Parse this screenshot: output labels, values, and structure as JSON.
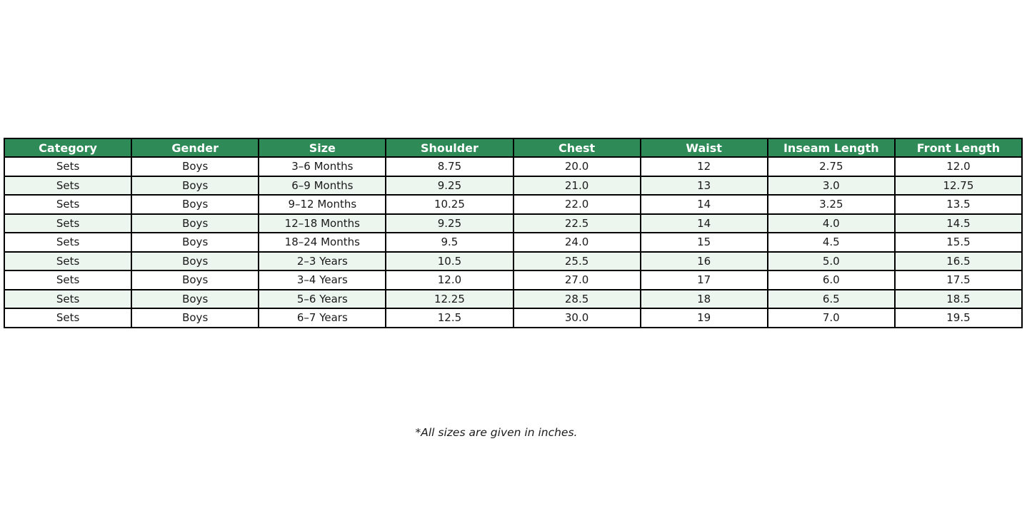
{
  "chart_data": {
    "type": "table",
    "title": "",
    "columns": [
      "Category",
      "Gender",
      "Size",
      "Shoulder",
      "Chest",
      "Waist",
      "Inseam Length",
      "Front Length"
    ],
    "rows": [
      [
        "Sets",
        "Boys",
        "3–6 Months",
        "8.75",
        "20.0",
        "12",
        "2.75",
        "12.0"
      ],
      [
        "Sets",
        "Boys",
        "6–9 Months",
        "9.25",
        "21.0",
        "13",
        "3.0",
        "12.75"
      ],
      [
        "Sets",
        "Boys",
        "9–12 Months",
        "10.25",
        "22.0",
        "14",
        "3.25",
        "13.5"
      ],
      [
        "Sets",
        "Boys",
        "12–18 Months",
        "9.25",
        "22.5",
        "14",
        "4.0",
        "14.5"
      ],
      [
        "Sets",
        "Boys",
        "18–24 Months",
        "9.5",
        "24.0",
        "15",
        "4.5",
        "15.5"
      ],
      [
        "Sets",
        "Boys",
        "2–3 Years",
        "10.5",
        "25.5",
        "16",
        "5.0",
        "16.5"
      ],
      [
        "Sets",
        "Boys",
        "3–4 Years",
        "12.0",
        "27.0",
        "17",
        "6.0",
        "17.5"
      ],
      [
        "Sets",
        "Boys",
        "5–6 Years",
        "12.25",
        "28.5",
        "18",
        "6.5",
        "18.5"
      ],
      [
        "Sets",
        "Boys",
        "6–7 Years",
        "12.5",
        "30.0",
        "19",
        "7.0",
        "19.5"
      ]
    ],
    "footnote": "*All sizes are given in inches.",
    "layout_hints": {
      "header_position": "top",
      "row_striping": "even rows tinted light green",
      "grid": "all cell borders visible, black"
    }
  },
  "colors": {
    "header_bg": "#2E8B57",
    "header_text": "#FFFFFF",
    "row_bg": "#FFFFFF",
    "row_alt_bg": "#ECF5EE",
    "border": "#000000",
    "cell_text": "#1A1A1A",
    "page_bg": "#FFFFFF"
  }
}
